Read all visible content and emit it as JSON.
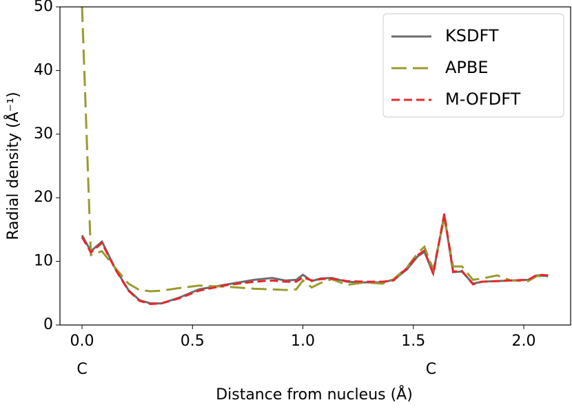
{
  "chart_data": {
    "type": "line",
    "xlabel": "Distance from nucleus (Å)",
    "ylabel": "Radial density (Å⁻¹)",
    "x": [
      0,
      0.04,
      0.09,
      0.15,
      0.21,
      0.26,
      0.31,
      0.36,
      0.44,
      0.53,
      0.66,
      0.78,
      0.86,
      0.92,
      0.97,
      1.0,
      1.04,
      1.08,
      1.13,
      1.2,
      1.28,
      1.36,
      1.41,
      1.47,
      1.52,
      1.55,
      1.59,
      1.64,
      1.68,
      1.72,
      1.77,
      1.81,
      1.88,
      1.94,
      2.02,
      2.06,
      2.11
    ],
    "series": [
      {
        "name": "KSDFT",
        "color": "#6b6b6b",
        "dash": "solid",
        "values": [
          14.1,
          11.6,
          13.1,
          8.9,
          5.5,
          3.9,
          3.4,
          3.4,
          4.3,
          5.6,
          6.4,
          7.1,
          7.4,
          7.0,
          7.1,
          7.9,
          6.9,
          7.3,
          7.4,
          6.8,
          6.7,
          6.7,
          7.1,
          8.7,
          10.8,
          11.5,
          8.1,
          17.3,
          8.3,
          8.4,
          6.5,
          6.8,
          6.9,
          7.0,
          7.1,
          7.8,
          7.7
        ]
      },
      {
        "name": "APBE",
        "color": "#9a9a2e",
        "dash": "long",
        "values": [
          50,
          11.0,
          11.6,
          9.0,
          6.5,
          5.5,
          5.3,
          5.4,
          5.8,
          6.2,
          6.0,
          5.7,
          5.6,
          5.5,
          5.6,
          7.0,
          5.9,
          6.6,
          7.2,
          6.3,
          6.7,
          6.5,
          7.2,
          9.0,
          11.3,
          12.3,
          8.7,
          16.8,
          9.2,
          9.2,
          7.1,
          7.3,
          7.8,
          7.0,
          6.9,
          7.7,
          7.6
        ]
      },
      {
        "name": "M-OFDFT",
        "color": "#e8262b",
        "dash": "short",
        "values": [
          13.8,
          11.4,
          12.9,
          8.8,
          5.4,
          3.8,
          3.3,
          3.4,
          4.2,
          5.4,
          6.3,
          6.8,
          7.0,
          6.8,
          6.8,
          7.5,
          7.0,
          7.2,
          7.3,
          6.9,
          6.8,
          6.8,
          7.0,
          8.9,
          11.0,
          11.7,
          8.0,
          17.5,
          8.4,
          8.5,
          6.4,
          6.8,
          6.9,
          7.0,
          7.1,
          7.9,
          7.8
        ]
      }
    ],
    "xlim": [
      -0.1,
      2.212
    ],
    "ylim": [
      0,
      50
    ],
    "xticks": [
      {
        "value": 0,
        "label": "0.0"
      },
      0.5,
      {
        "value": 1,
        "label": "1.0"
      },
      1.5,
      {
        "value": 2,
        "label": "2.0"
      }
    ],
    "yticks": [
      0,
      10,
      20,
      30,
      40,
      50
    ],
    "annotations": [
      {
        "text": "C",
        "x": 0
      },
      {
        "text": "C",
        "x": 1.58
      }
    ],
    "legend": "upper right",
    "grid": false
  }
}
